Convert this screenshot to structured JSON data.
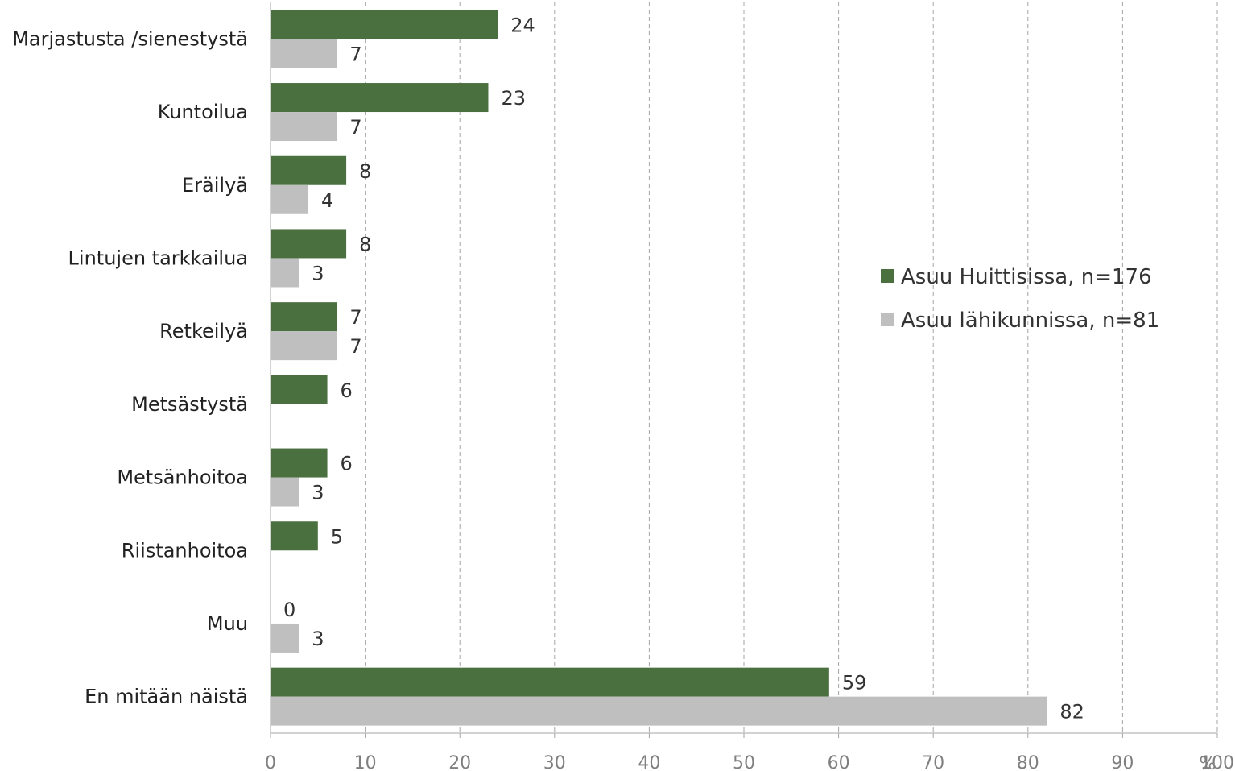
{
  "chart_data": {
    "type": "bar",
    "orientation": "horizontal",
    "categories": [
      "Marjastusta /sienestystä",
      "Kuntoilua",
      "Eräilyä",
      "Lintujen tarkkailua",
      "Retkeilyä",
      "Metsästystä",
      "Metsänhoitoa",
      "Riistanhoitoa",
      "Muu",
      "En mitään näistä"
    ],
    "series": [
      {
        "name": "Asuu Huittisissa, n=176",
        "color": "#4a7040",
        "values": [
          24,
          23,
          8,
          8,
          7,
          6,
          6,
          5,
          0,
          59
        ],
        "labels": [
          "24",
          "23",
          "8",
          "8",
          "7",
          "6",
          "6",
          "5",
          "0",
          "59"
        ]
      },
      {
        "name": "Asuu lähikunnissa, n=81",
        "color": "#bfbfbf",
        "values": [
          7,
          7,
          4,
          3,
          7,
          null,
          3,
          null,
          3,
          82
        ],
        "labels": [
          "7",
          "7",
          "4",
          "3",
          "7",
          null,
          "3",
          null,
          "3",
          "82"
        ]
      }
    ],
    "xlim": [
      0,
      100
    ],
    "xticks": [
      "0",
      "10",
      "20",
      "30",
      "40",
      "50",
      "60",
      "70",
      "80",
      "90",
      "100"
    ],
    "xunit": "%",
    "grid": "vertical-dashed",
    "legend_position": "right"
  }
}
